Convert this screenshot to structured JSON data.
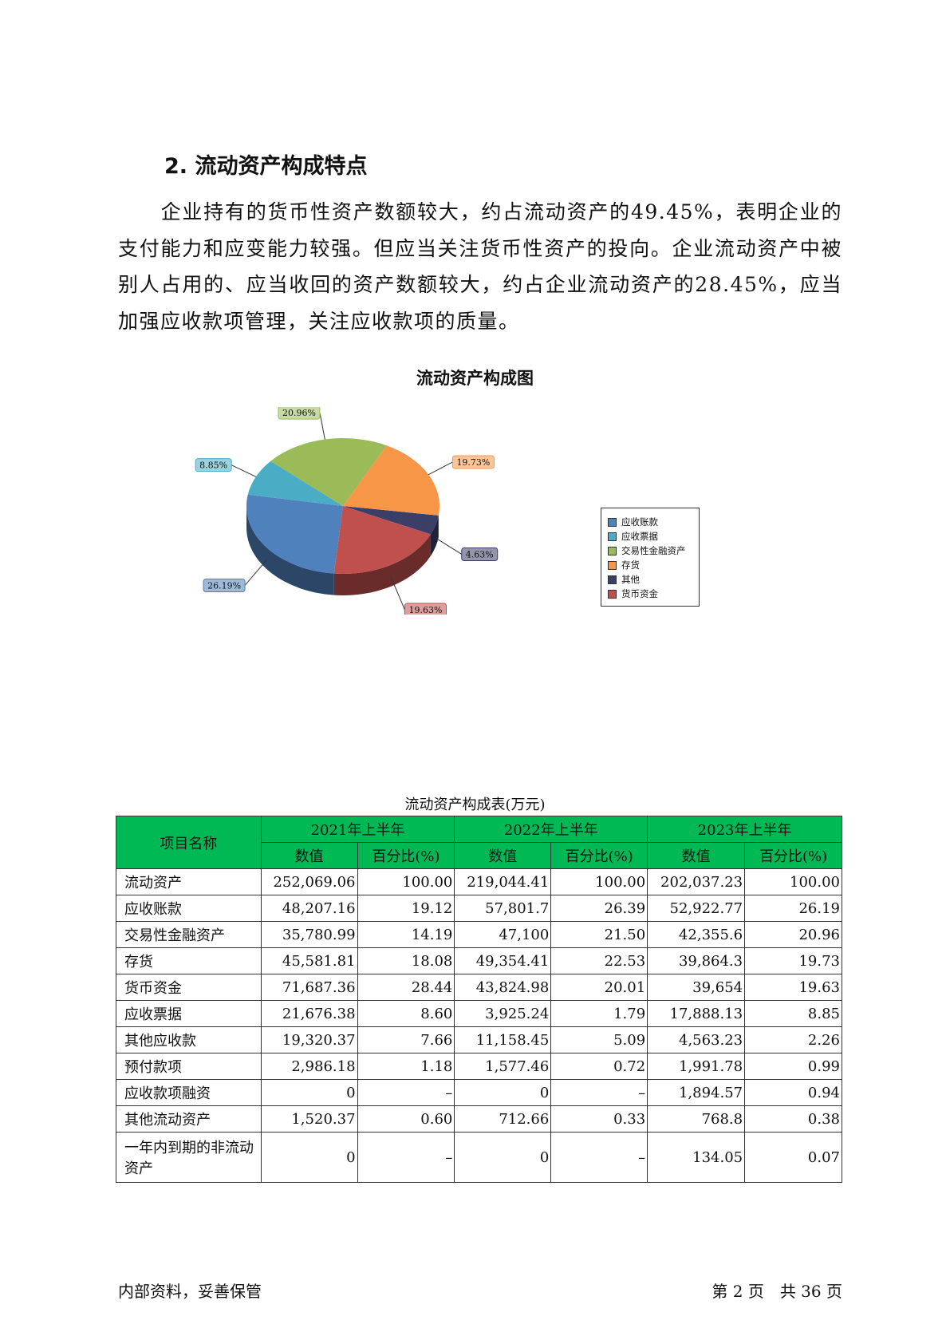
{
  "heading": "2. 流动资产构成特点",
  "paragraph": [
    "　　企业持有的货币性资产数额较大，约占流动资产的49.45%，表明企业的支付能力和应变能力较强。但应当关注货币性资产的投向。企业流动资产中被别人占用的、应当收回的资产数额较大，约占企业流动资产的28.45%，应当加强应收款项管理，关注应收款项的质量。"
  ],
  "chart_data": {
    "type": "pie",
    "title": "流动资产构成图",
    "categories": [
      "应收账款",
      "应收票据",
      "交易性金融资产",
      "存货",
      "其他",
      "货币资金"
    ],
    "values": [
      26.19,
      8.85,
      20.96,
      19.73,
      4.63,
      19.63
    ],
    "labels": [
      "26.19%",
      "8.85%",
      "20.96%",
      "19.73%",
      "4.63%",
      "19.63%"
    ],
    "colors": [
      "#4f81bd",
      "#4bacc6",
      "#9bbb59",
      "#f79646",
      "#3b3e66",
      "#c0504d"
    ],
    "legend_position": "right"
  },
  "table": {
    "caption": "流动资产构成表(万元)",
    "header_item": "项目名称",
    "years": [
      "2021年上半年",
      "2022年上半年",
      "2023年上半年"
    ],
    "sub": [
      "数值",
      "百分比(%)"
    ],
    "rows": [
      [
        "流动资产",
        "252,069.06",
        "100.00",
        "219,044.41",
        "100.00",
        "202,037.23",
        "100.00"
      ],
      [
        "应收账款",
        "48,207.16",
        "19.12",
        "57,801.7",
        "26.39",
        "52,922.77",
        "26.19"
      ],
      [
        "交易性金融资产",
        "35,780.99",
        "14.19",
        "47,100",
        "21.50",
        "42,355.6",
        "20.96"
      ],
      [
        "存货",
        "45,581.81",
        "18.08",
        "49,354.41",
        "22.53",
        "39,864.3",
        "19.73"
      ],
      [
        "货币资金",
        "71,687.36",
        "28.44",
        "43,824.98",
        "20.01",
        "39,654",
        "19.63"
      ],
      [
        "应收票据",
        "21,676.38",
        "8.60",
        "3,925.24",
        "1.79",
        "17,888.13",
        "8.85"
      ],
      [
        "其他应收款",
        "19,320.37",
        "7.66",
        "11,158.45",
        "5.09",
        "4,563.23",
        "2.26"
      ],
      [
        "预付款项",
        "2,986.18",
        "1.18",
        "1,577.46",
        "0.72",
        "1,991.78",
        "0.99"
      ],
      [
        "应收款项融资",
        "0",
        "–",
        "0",
        "–",
        "1,894.57",
        "0.94"
      ],
      [
        "其他流动资产",
        "1,520.37",
        "0.60",
        "712.66",
        "0.33",
        "768.8",
        "0.38"
      ],
      [
        "一年内到期的非流动资产",
        "0",
        "–",
        "0",
        "–",
        "134.05",
        "0.07"
      ]
    ]
  },
  "footer": {
    "left": "内部资料，妥善保管",
    "right": "第 2 页　共 36 页"
  }
}
